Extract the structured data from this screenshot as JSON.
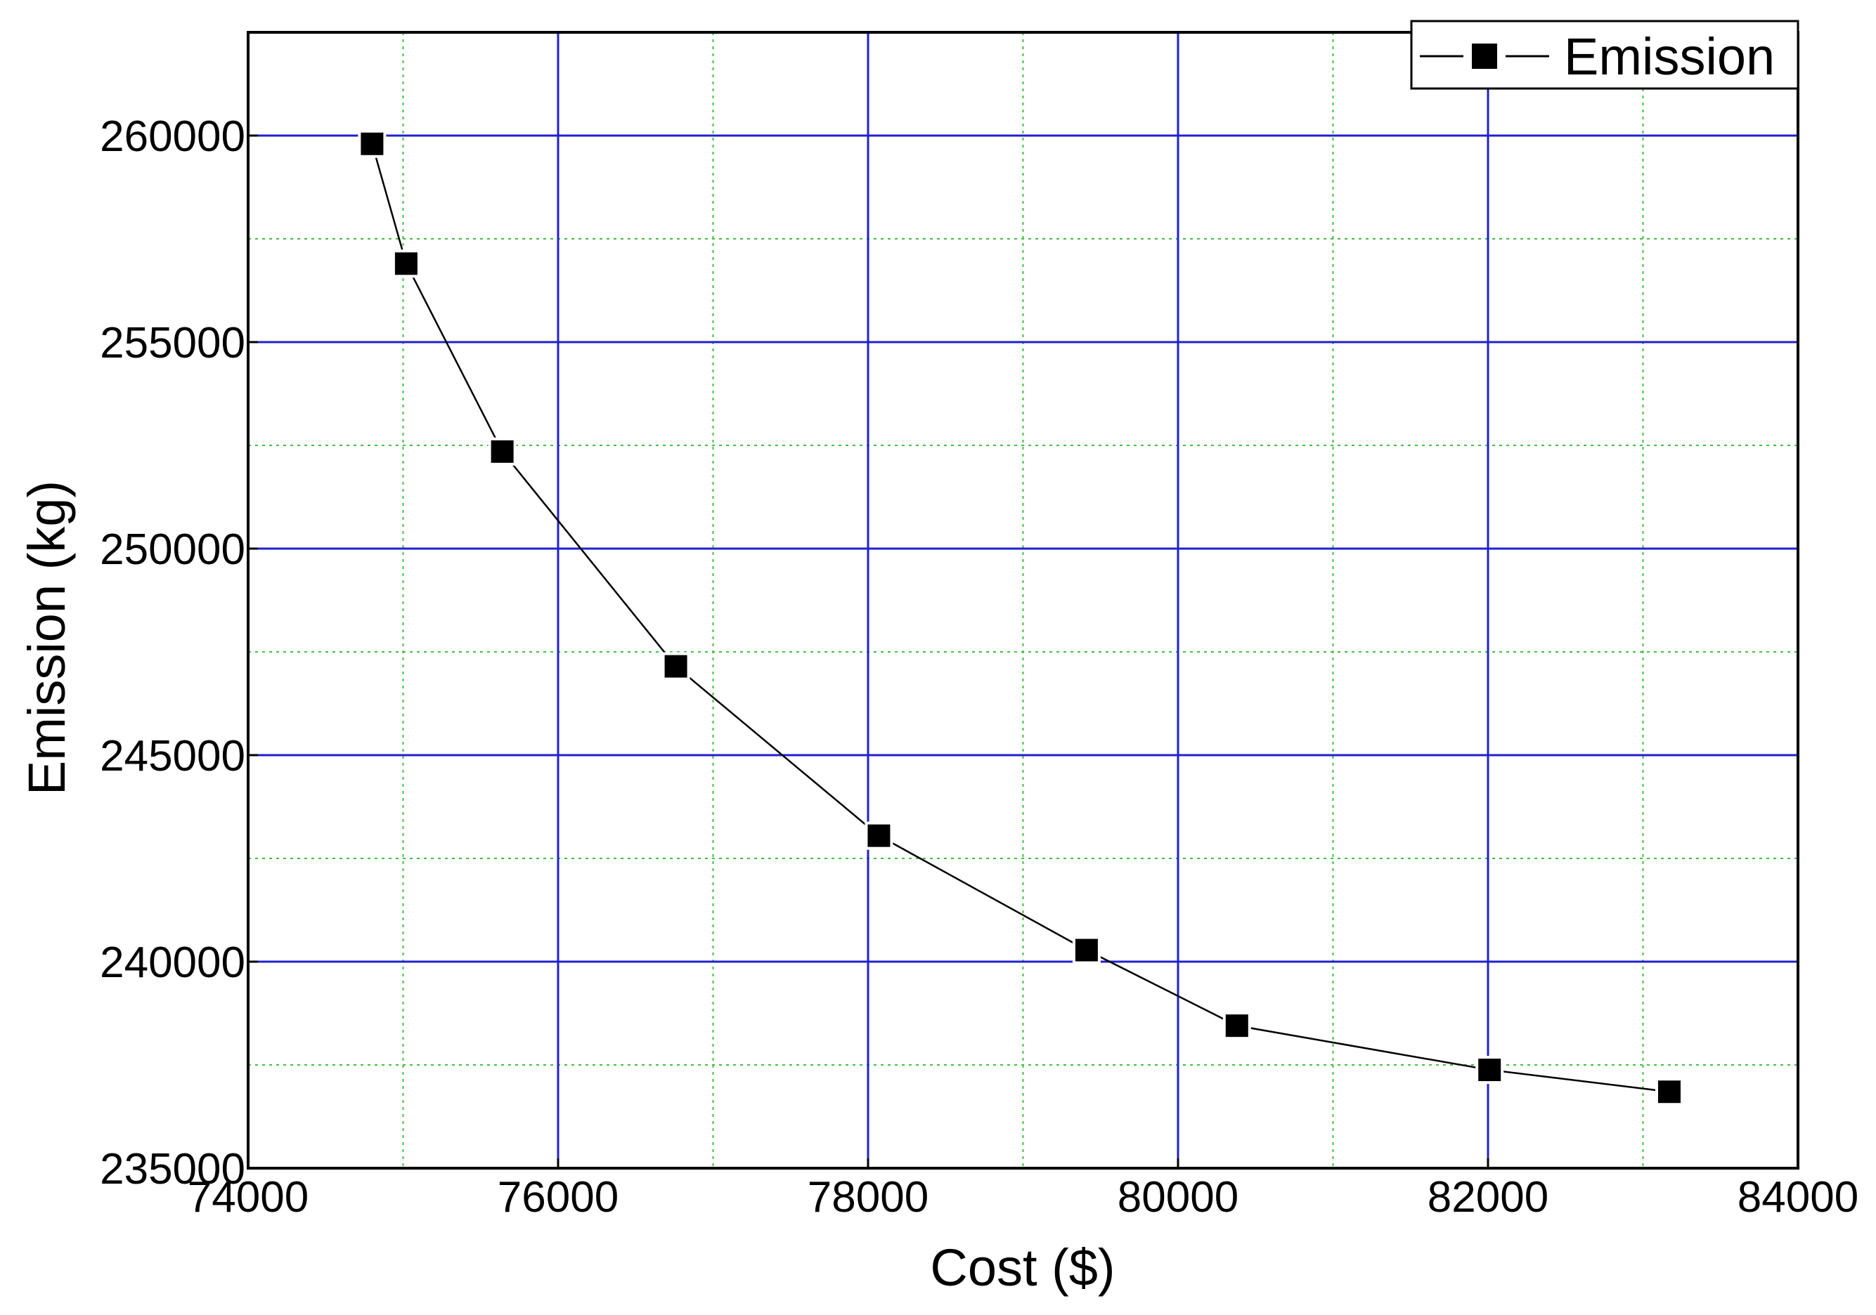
{
  "chart_data": {
    "type": "line",
    "xlabel": "Cost ($)",
    "ylabel": "Emission (kg)",
    "xlim": [
      74000,
      84000
    ],
    "ylim": [
      235000,
      262500
    ],
    "xticks": [
      "74000",
      "76000",
      "78000",
      "80000",
      "82000",
      "84000"
    ],
    "yticks": [
      "235000",
      "240000",
      "245000",
      "250000",
      "255000",
      "260000"
    ],
    "grid": {
      "major": true,
      "minor": true
    },
    "legend_position": "top-right",
    "colors": {
      "series": "#000000",
      "major_grid": "#2020d0",
      "minor_grid": "#40c040",
      "frame": "#000000"
    },
    "series": [
      {
        "name": "Emission",
        "marker": "square",
        "x": [
          74800,
          75020,
          75640,
          76760,
          78070,
          79410,
          80380,
          82010,
          83170
        ],
        "y": [
          259800,
          256900,
          252350,
          247150,
          243050,
          240280,
          238450,
          237380,
          236850
        ]
      }
    ]
  }
}
